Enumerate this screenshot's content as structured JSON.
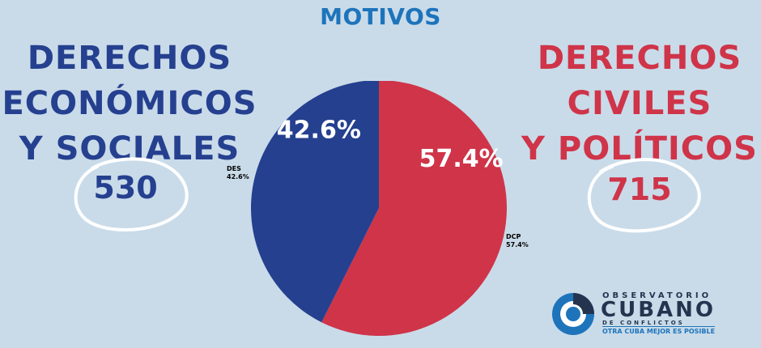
{
  "title": "MOTIVOS",
  "left": {
    "lines": [
      "DERECHOS",
      "ECONÓMICOS",
      "Y SOCIALES"
    ],
    "count": "530"
  },
  "right": {
    "lines": [
      "DERECHOS",
      "CIVILES",
      "Y POLÍTICOS"
    ],
    "count": "715"
  },
  "colors": {
    "blue": "#25408f",
    "red": "#cf3449",
    "title": "#1d74bb"
  },
  "chart_data": {
    "type": "pie",
    "slices": [
      {
        "label": "DCP",
        "value": 57.4,
        "display": "57.4%",
        "color": "#cf3449"
      },
      {
        "label": "DES",
        "value": 42.6,
        "display": "42.6%",
        "color": "#25408f"
      }
    ]
  },
  "logo": {
    "line1": "OBSERVATORIO",
    "line2": "CUBANO",
    "line3": "DE CONFLICTOS",
    "tagline": "OTRA CUBA MEJOR ES POSIBLE",
    "icon": "swirl-icon"
  }
}
